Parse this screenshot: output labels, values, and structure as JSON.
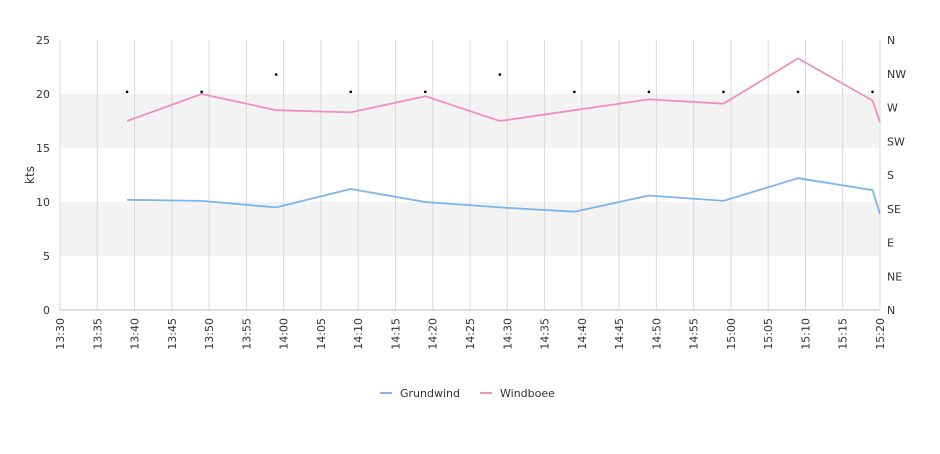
{
  "chart_data": {
    "type": "line",
    "title": "",
    "xlabel": "",
    "ylabel": "kts",
    "x_ticks": [
      "13:30",
      "13:35",
      "13:40",
      "13:45",
      "13:50",
      "13:55",
      "14:00",
      "14:05",
      "14:10",
      "14:15",
      "14:20",
      "14:25",
      "14:30",
      "14:35",
      "14:40",
      "14:45",
      "14:50",
      "14:55",
      "15:00",
      "15:05",
      "15:10",
      "15:15",
      "15:20"
    ],
    "x_range": [
      "13:30",
      "15:20"
    ],
    "ylim": [
      0,
      25
    ],
    "y_ticks": [
      "0",
      "5",
      "10",
      "15",
      "20",
      "25"
    ],
    "y2_ticks": [
      "N",
      "NE",
      "E",
      "SE",
      "S",
      "SW",
      "W",
      "NW",
      "N"
    ],
    "grid": true,
    "banded_background": true,
    "legend_position": "bottom",
    "series": [
      {
        "name": "Grundwind",
        "color": "#7cb5ec",
        "x": [
          "13:39",
          "13:49",
          "13:59",
          "14:09",
          "14:19",
          "14:29",
          "14:39",
          "14:49",
          "14:59",
          "15:09",
          "15:19",
          "15:20"
        ],
        "values": [
          10.2,
          10.1,
          9.5,
          11.2,
          10.0,
          9.5,
          9.1,
          10.6,
          10.1,
          12.2,
          11.1,
          8.9
        ]
      },
      {
        "name": "Windboee",
        "color": "#f08fc0",
        "x": [
          "13:39",
          "13:49",
          "13:59",
          "14:09",
          "14:19",
          "14:29",
          "14:39",
          "14:49",
          "14:59",
          "15:09",
          "15:19",
          "15:20"
        ],
        "values": [
          17.5,
          20.0,
          18.5,
          18.3,
          19.8,
          17.5,
          18.5,
          19.5,
          19.1,
          23.3,
          19.4,
          17.4
        ]
      }
    ],
    "direction_markers": {
      "x": [
        "13:39",
        "13:49",
        "13:59",
        "14:09",
        "14:19",
        "14:29",
        "14:39",
        "14:49",
        "14:59",
        "15:09",
        "15:19"
      ],
      "y": [
        20.2,
        20.2,
        21.8,
        20.2,
        20.2,
        21.8,
        20.2,
        20.2,
        20.2,
        20.2,
        20.2
      ]
    }
  }
}
